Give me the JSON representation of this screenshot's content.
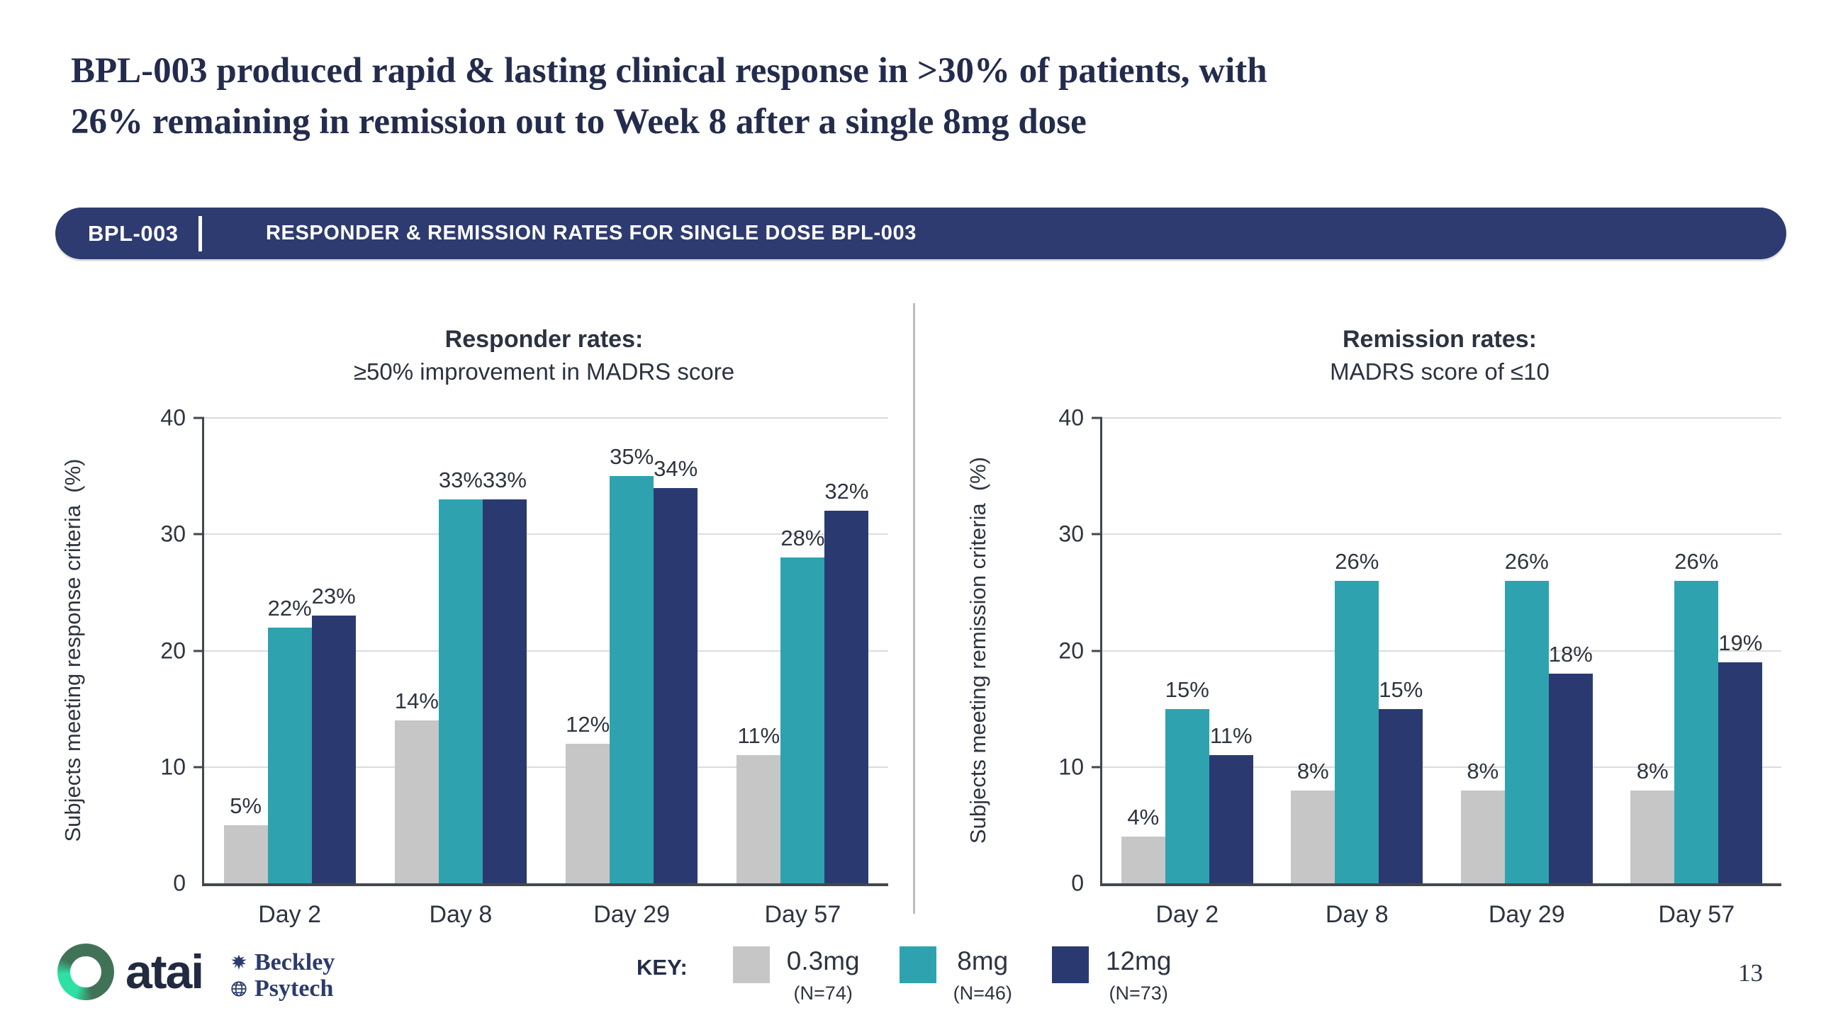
{
  "title": "BPL-003 produced rapid & lasting clinical response in >30% of patients, with\n26% remaining in remission out to Week 8 after a single 8mg dose",
  "banner": {
    "tag": "BPL-003",
    "title": "RESPONDER & REMISSION RATES FOR SINGLE DOSE BPL-003",
    "bg": "#2e3b70"
  },
  "colors": {
    "dose_03mg": "#c6c6c6",
    "dose_8mg": "#2ea3af",
    "dose_12mg": "#2a3a71",
    "title_navy": "#232c4c",
    "chart_text": "#2e3440"
  },
  "chart_data": [
    {
      "type": "bar",
      "title": "Responder rates:",
      "subtitle": "≥50% improvement in MADRS score",
      "ylabel": "Subjects meeting response criteria  (%)",
      "categories": [
        "Day 2",
        "Day 8",
        "Day 29",
        "Day 57"
      ],
      "series": [
        {
          "name": "0.3mg",
          "color": "#c6c6c6",
          "values": [
            5,
            14,
            12,
            11
          ]
        },
        {
          "name": "8mg",
          "color": "#2ea3af",
          "values": [
            22,
            33,
            35,
            28
          ]
        },
        {
          "name": "12mg",
          "color": "#2a3a71",
          "values": [
            23,
            33,
            34,
            32
          ]
        }
      ],
      "ylim": [
        0,
        40
      ],
      "yticks": [
        0,
        10,
        20,
        30,
        40
      ],
      "grid": true,
      "value_suffix": "%"
    },
    {
      "type": "bar",
      "title": "Remission rates:",
      "subtitle": "MADRS score of ≤10",
      "ylabel": "Subjects meeting remission criteria  (%)",
      "categories": [
        "Day 2",
        "Day 8",
        "Day 29",
        "Day 57"
      ],
      "series": [
        {
          "name": "0.3mg",
          "color": "#c6c6c6",
          "values": [
            4,
            8,
            8,
            8
          ]
        },
        {
          "name": "8mg",
          "color": "#2ea3af",
          "values": [
            15,
            26,
            26,
            26
          ]
        },
        {
          "name": "12mg",
          "color": "#2a3a71",
          "values": [
            11,
            15,
            18,
            19
          ]
        }
      ],
      "ylim": [
        0,
        40
      ],
      "yticks": [
        0,
        10,
        20,
        30,
        40
      ],
      "grid": true,
      "value_suffix": "%"
    }
  ],
  "legend": {
    "label": "KEY:",
    "items": [
      {
        "name": "0.3mg",
        "n": "(N=74)",
        "color": "#c6c6c6"
      },
      {
        "name": "8mg",
        "n": "(N=46)",
        "color": "#2ea3af"
      },
      {
        "name": "12mg",
        "n": "(N=73)",
        "color": "#2a3a71"
      }
    ]
  },
  "logos": {
    "atai": "atai",
    "beckley_line1": "Beckley",
    "beckley_line2": "Psytech"
  },
  "page_number": "13"
}
